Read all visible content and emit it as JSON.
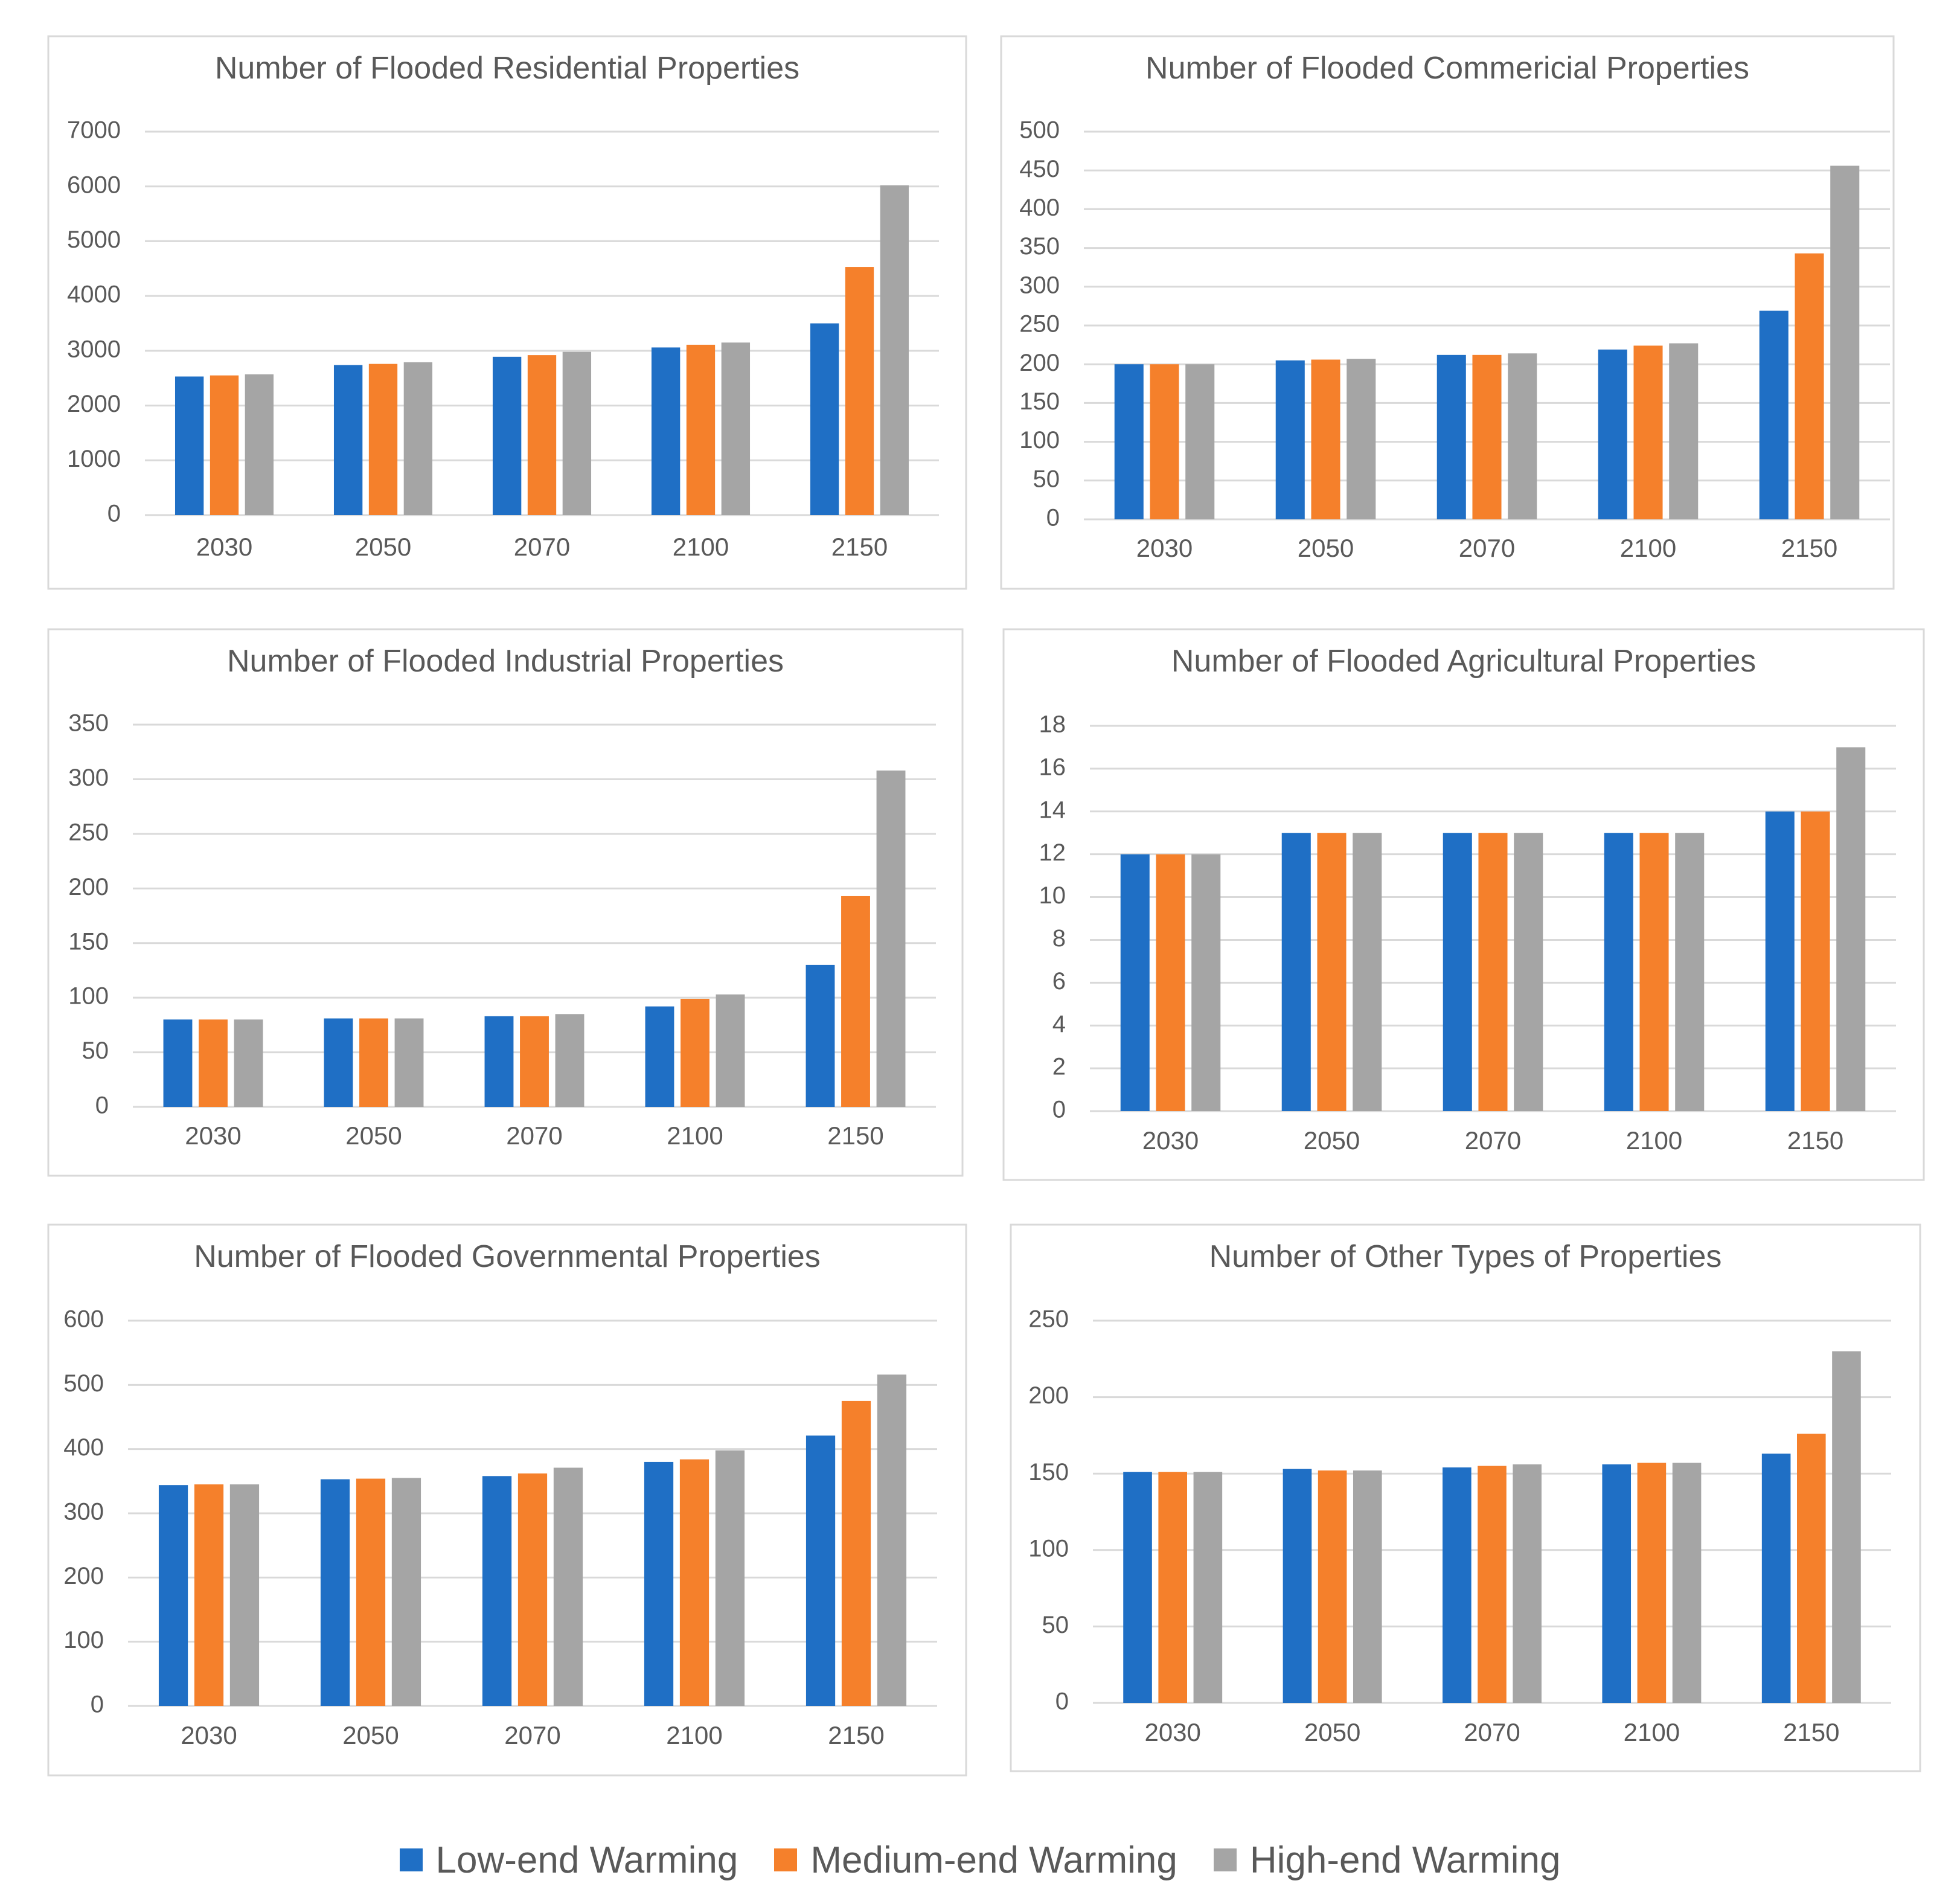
{
  "colors": {
    "low": "#1f6fc5",
    "medium": "#f5802b",
    "high": "#a5a5a5"
  },
  "legend": {
    "items": [
      {
        "key": "low",
        "label": "Low-end Warming"
      },
      {
        "key": "medium",
        "label": "Medium-end Warming"
      },
      {
        "key": "high",
        "label": "High-end Warming"
      }
    ]
  },
  "chart_data": [
    {
      "type": "bar",
      "title": "Number of Flooded Residential Properties",
      "categories": [
        "2030",
        "2050",
        "2070",
        "2100",
        "2150"
      ],
      "ylim": [
        0,
        7000
      ],
      "yticks": [
        "0",
        "1000",
        "2000",
        "3000",
        "4000",
        "5000",
        "6000",
        "7000"
      ],
      "series": [
        {
          "name": "Low-end Warming",
          "key": "low",
          "values": [
            2530,
            2740,
            2890,
            3060,
            3500
          ]
        },
        {
          "name": "Medium-end Warming",
          "key": "medium",
          "values": [
            2550,
            2760,
            2920,
            3110,
            4530
          ]
        },
        {
          "name": "High-end Warming",
          "key": "high",
          "values": [
            2570,
            2790,
            2980,
            3150,
            6020
          ]
        }
      ]
    },
    {
      "type": "bar",
      "title": "Number of Flooded Commericial Properties",
      "categories": [
        "2030",
        "2050",
        "2070",
        "2100",
        "2150"
      ],
      "ylim": [
        0,
        500
      ],
      "yticks": [
        "0",
        "50",
        "100",
        "150",
        "200",
        "250",
        "300",
        "350",
        "400",
        "450",
        "500"
      ],
      "series": [
        {
          "name": "Low-end Warming",
          "key": "low",
          "values": [
            200,
            205,
            212,
            219,
            269
          ]
        },
        {
          "name": "Medium-end Warming",
          "key": "medium",
          "values": [
            200,
            206,
            212,
            224,
            343
          ]
        },
        {
          "name": "High-end Warming",
          "key": "high",
          "values": [
            200,
            207,
            214,
            227,
            456
          ]
        }
      ]
    },
    {
      "type": "bar",
      "title": "Number of Flooded Industrial Properties",
      "categories": [
        "2030",
        "2050",
        "2070",
        "2100",
        "2150"
      ],
      "ylim": [
        0,
        350
      ],
      "yticks": [
        "0",
        "50",
        "100",
        "150",
        "200",
        "250",
        "300",
        "350"
      ],
      "series": [
        {
          "name": "Low-end Warming",
          "key": "low",
          "values": [
            80,
            81,
            83,
            92,
            130
          ]
        },
        {
          "name": "Medium-end Warming",
          "key": "medium",
          "values": [
            80,
            81,
            83,
            99,
            193
          ]
        },
        {
          "name": "High-end Warming",
          "key": "high",
          "values": [
            80,
            81,
            85,
            103,
            308
          ]
        }
      ]
    },
    {
      "type": "bar",
      "title": "Number of Flooded Agricultural Properties",
      "categories": [
        "2030",
        "2050",
        "2070",
        "2100",
        "2150"
      ],
      "ylim": [
        0,
        18
      ],
      "yticks": [
        "0",
        "2",
        "4",
        "6",
        "8",
        "10",
        "12",
        "14",
        "16",
        "18"
      ],
      "series": [
        {
          "name": "Low-end Warming",
          "key": "low",
          "values": [
            12,
            13,
            13,
            13,
            14
          ]
        },
        {
          "name": "Medium-end Warming",
          "key": "medium",
          "values": [
            12,
            13,
            13,
            13,
            14
          ]
        },
        {
          "name": "High-end Warming",
          "key": "high",
          "values": [
            12,
            13,
            13,
            13,
            17
          ]
        }
      ]
    },
    {
      "type": "bar",
      "title": "Number of Flooded Governmental Properties",
      "categories": [
        "2030",
        "2050",
        "2070",
        "2100",
        "2150"
      ],
      "ylim": [
        0,
        600
      ],
      "yticks": [
        "0",
        "100",
        "200",
        "300",
        "400",
        "500",
        "600"
      ],
      "series": [
        {
          "name": "Low-end Warming",
          "key": "low",
          "values": [
            344,
            353,
            358,
            380,
            421
          ]
        },
        {
          "name": "Medium-end Warming",
          "key": "medium",
          "values": [
            345,
            354,
            362,
            384,
            475
          ]
        },
        {
          "name": "High-end Warming",
          "key": "high",
          "values": [
            345,
            355,
            371,
            398,
            516
          ]
        }
      ]
    },
    {
      "type": "bar",
      "title": "Number of Other Types of Properties",
      "categories": [
        "2030",
        "2050",
        "2070",
        "2100",
        "2150"
      ],
      "ylim": [
        0,
        250
      ],
      "yticks": [
        "0",
        "50",
        "100",
        "150",
        "200",
        "250"
      ],
      "series": [
        {
          "name": "Low-end Warming",
          "key": "low",
          "values": [
            151,
            153,
            154,
            156,
            163
          ]
        },
        {
          "name": "Medium-end Warming",
          "key": "medium",
          "values": [
            151,
            152,
            155,
            157,
            176
          ]
        },
        {
          "name": "High-end Warming",
          "key": "high",
          "values": [
            151,
            152,
            156,
            157,
            230
          ]
        }
      ]
    }
  ]
}
